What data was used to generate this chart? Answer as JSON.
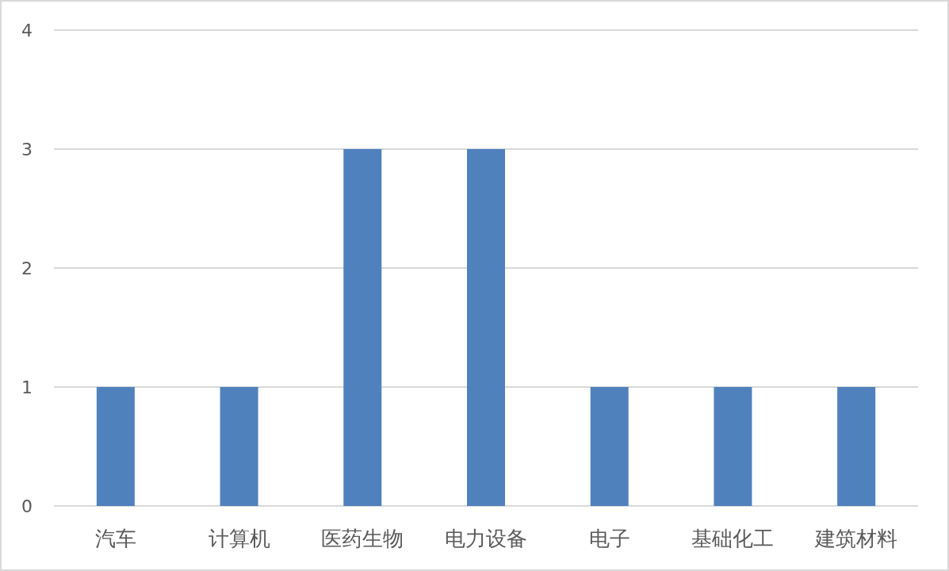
{
  "chart_data": {
    "type": "bar",
    "categories": [
      "汽车",
      "计算机",
      "医药生物",
      "电力设备",
      "电子",
      "基础化工",
      "建筑材料"
    ],
    "values": [
      1,
      1,
      3,
      3,
      1,
      1,
      1
    ],
    "color": "#4f81bd",
    "ylim": [
      0,
      4
    ],
    "yticks": [
      0,
      1,
      2,
      3,
      4
    ],
    "grid": "y"
  }
}
